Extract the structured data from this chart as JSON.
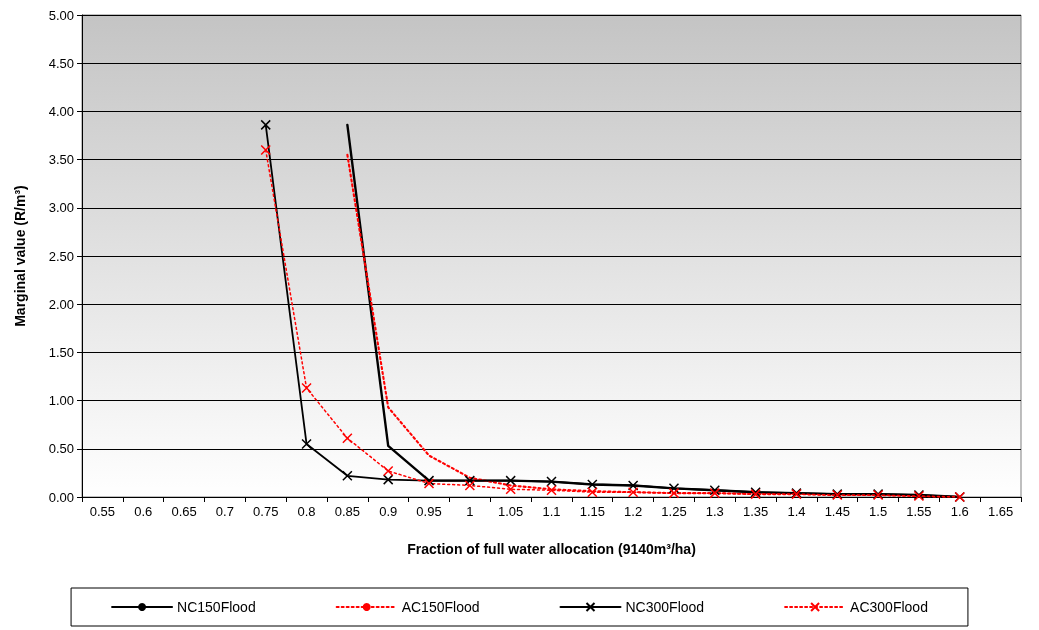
{
  "chart_data": {
    "type": "line",
    "xlabel": "Fraction of full water allocation (9140m³/ha)",
    "ylabel": "Marginal value (R/m³)",
    "categories": [
      "0.55",
      "0.6",
      "0.65",
      "0.7",
      "0.75",
      "0.8",
      "0.85",
      "0.9",
      "0.95",
      "1",
      "1.05",
      "1.1",
      "1.15",
      "1.2",
      "1.25",
      "1.3",
      "1.35",
      "1.4",
      "1.45",
      "1.5",
      "1.55",
      "1.6",
      "1.65"
    ],
    "ylim": [
      0,
      5
    ],
    "yticks": [
      {
        "value": 0,
        "label": "0.00"
      },
      {
        "value": 0.5,
        "label": "0.50"
      },
      {
        "value": 1,
        "label": "1.00"
      },
      {
        "value": 1.5,
        "label": "1.50"
      },
      {
        "value": 2,
        "label": "2.00"
      },
      {
        "value": 2.5,
        "label": "2.50"
      },
      {
        "value": 3,
        "label": "3.00"
      },
      {
        "value": 3.5,
        "label": "3.50"
      },
      {
        "value": 4,
        "label": "4.00"
      },
      {
        "value": 4.5,
        "label": "4.50"
      },
      {
        "value": 5,
        "label": "5.00"
      }
    ],
    "grid": "y",
    "legend": "bottom",
    "series": [
      {
        "name": "NC150Flood",
        "color": "#000000",
        "marker": "none",
        "line_style": "solid",
        "values": [
          null,
          null,
          null,
          null,
          null,
          null,
          3.86,
          0.53,
          0.17,
          0.17,
          0.17,
          0.16,
          0.13,
          0.12,
          0.09,
          0.07,
          0.05,
          0.04,
          0.03,
          0.03,
          0.02,
          0.0,
          null
        ]
      },
      {
        "name": "AC150Flood",
        "color": "#ff0000",
        "marker": "none",
        "line_style": "dotted",
        "values": [
          null,
          null,
          null,
          null,
          null,
          null,
          3.55,
          0.93,
          0.43,
          0.2,
          0.12,
          0.08,
          0.06,
          0.05,
          0.04,
          0.04,
          0.03,
          0.03,
          0.02,
          0.02,
          0.01,
          0.0,
          null
        ]
      },
      {
        "name": "NC300Flood",
        "color": "#000000",
        "marker": "cross",
        "line_style": "solid",
        "values": [
          null,
          null,
          null,
          null,
          3.86,
          0.55,
          0.22,
          0.18,
          0.17,
          0.17,
          0.17,
          0.16,
          0.13,
          0.12,
          0.09,
          0.07,
          0.05,
          0.04,
          0.03,
          0.03,
          0.02,
          0.0,
          null
        ]
      },
      {
        "name": "AC300Flood",
        "color": "#ff0000",
        "marker": "cross",
        "line_style": "dotted",
        "values": [
          null,
          null,
          null,
          null,
          3.6,
          1.13,
          0.61,
          0.27,
          0.14,
          0.12,
          0.08,
          0.07,
          0.05,
          0.05,
          0.04,
          0.04,
          0.03,
          0.03,
          0.02,
          0.02,
          0.01,
          0.0,
          null
        ]
      }
    ]
  }
}
